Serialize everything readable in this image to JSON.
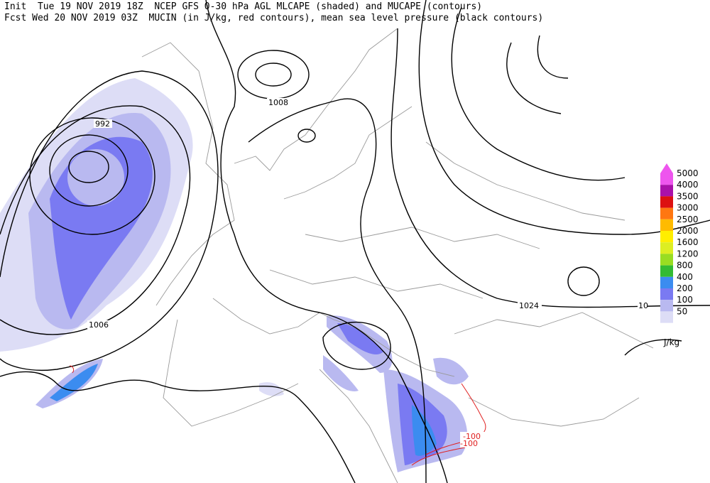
{
  "header": {
    "line1": "Init  Tue 19 NOV 2019 18Z  NCEP GFS 0-30 hPa AGL MLCAPE (shaded) and MUCAPE (contours)",
    "line2": "Fcst Wed 20 NOV 2019 03Z  MUCIN (in J/kg, red contours), mean sea level pressure (black contours)"
  },
  "contour_labels": [
    "992",
    "1008",
    "1006",
    "1024",
    "10",
    "-100",
    "-100"
  ],
  "legend": {
    "levels": [
      5000,
      4000,
      3500,
      3000,
      2500,
      2000,
      1600,
      1200,
      800,
      400,
      200,
      100,
      50
    ],
    "colors": [
      "#ee55ee",
      "#aa11aa",
      "#dd1111",
      "#ff7711",
      "#ffbb00",
      "#ffee00",
      "#ddee22",
      "#99dd22",
      "#33bb33",
      "#3b8cf0",
      "#7a7af2",
      "#b9b9f0",
      "#ddddf6"
    ],
    "unit": "J/kg"
  }
}
